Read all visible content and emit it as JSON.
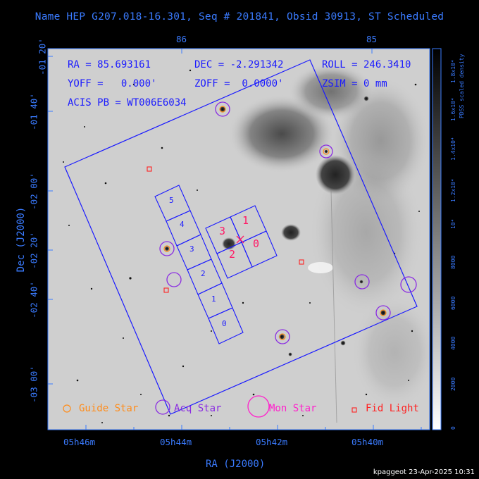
{
  "title": "Name HEP G207.018-16.301, Seq # 201841, Obsid 30913, ST Scheduled",
  "axes": {
    "xlabel": "RA (J2000)",
    "ylabel": "Dec (J2000)",
    "ra_ticks_bottom": [
      "05h46m",
      "05h44m",
      "05h42m",
      "05h40m"
    ],
    "ra_ticks_top": [
      "86",
      "85"
    ],
    "dec_ticks": [
      "-01 20'",
      "-01 40'",
      "-02 00'",
      "-02 20'",
      "-02 40'",
      "-03 00'"
    ]
  },
  "info": {
    "ra": "RA = 85.693161",
    "dec": "DEC = -2.291342",
    "roll": "ROLL = 246.3410",
    "yoff": "YOFF =   0.000'",
    "zoff": "ZOFF =  0.0000'",
    "zsim": "ZSIM = 0 mm",
    "acis": "ACIS PB = WT006E6034"
  },
  "chips": {
    "s_labels": [
      "5",
      "4",
      "3",
      "2",
      "1",
      "0"
    ],
    "i_labels": [
      "3",
      "1",
      "2",
      "0"
    ]
  },
  "legend": {
    "guide": "Guide Star",
    "acq": "Acq Star",
    "mon": "Mon Star",
    "fid": "Fid Light"
  },
  "colorbar": {
    "label": "PDSS scaled density",
    "ticks": [
      "0",
      "2000",
      "4000",
      "6000",
      "8000",
      "10⁴",
      "1.2x10⁴",
      "1.4x10⁴",
      "1.6x10⁴",
      "1.8x10⁴"
    ]
  },
  "colors": {
    "axis": "#3a7bff",
    "guide": "#ff8c1a",
    "acq": "#8a2be2",
    "mon": "#ff22cc",
    "fid": "#ff2222",
    "fov": "#1a1aff",
    "i_labels": "#ff1a66"
  },
  "footer": "kpaggeot 23-Apr-2025 10:31"
}
